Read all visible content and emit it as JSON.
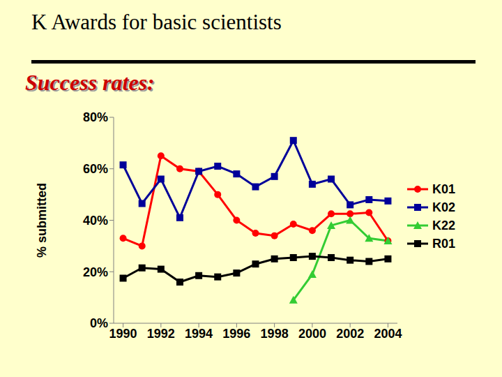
{
  "chart_data": {
    "type": "line",
    "title": "K Awards for basic scientists",
    "subtitle": "Success rates:",
    "y_label": "% submitted",
    "x": [
      1990,
      1991,
      1992,
      1993,
      1994,
      1995,
      1996,
      1997,
      1998,
      1999,
      2000,
      2001,
      2002,
      2003,
      2004
    ],
    "series": [
      {
        "name": "K01",
        "color": "#ff0000",
        "marker": "circle",
        "values": [
          33,
          30,
          65,
          60,
          59,
          50,
          40,
          35,
          34,
          38.5,
          36,
          42.5,
          42.5,
          43,
          32
        ]
      },
      {
        "name": "K02",
        "color": "#000099",
        "marker": "square",
        "values": [
          61.5,
          46.5,
          56,
          41,
          59,
          61,
          58,
          53,
          57,
          71,
          54,
          56,
          46,
          48,
          47.5
        ]
      },
      {
        "name": "K22",
        "color": "#33cc33",
        "marker": "triangle",
        "values": [
          null,
          null,
          null,
          null,
          null,
          null,
          null,
          null,
          null,
          9,
          19,
          38,
          40,
          33,
          32
        ]
      },
      {
        "name": "R01",
        "color": "#000000",
        "marker": "square",
        "values": [
          17.5,
          21.5,
          21,
          16,
          18.5,
          18,
          19.5,
          23,
          25,
          25.5,
          26,
          25.5,
          24.5,
          24,
          25
        ]
      }
    ],
    "xlim": [
      1989.5,
      2004.5
    ],
    "xticks": [
      1990,
      1992,
      1994,
      1996,
      1998,
      2000,
      2002,
      2004
    ],
    "ylim": [
      0,
      80
    ],
    "yticks": [
      {
        "value": 0,
        "label": "0%"
      },
      {
        "value": 20,
        "label": "20%"
      },
      {
        "value": 40,
        "label": "40%"
      },
      {
        "value": 60,
        "label": "60%"
      },
      {
        "value": 80,
        "label": "80%"
      }
    ],
    "grid": false,
    "legend": "right"
  }
}
